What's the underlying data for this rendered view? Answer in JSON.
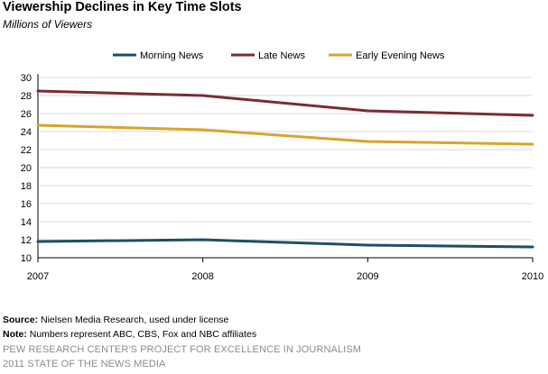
{
  "header": {
    "title": "Viewership Declines  in Key Time Slots",
    "subtitle": "Millions of Viewers"
  },
  "chart_data": {
    "type": "line",
    "x": [
      "2007",
      "2008",
      "2009",
      "2010"
    ],
    "series": [
      {
        "name": "Morning News",
        "values": [
          11.8,
          12.0,
          11.4,
          11.2
        ],
        "color": "#1f4e66"
      },
      {
        "name": "Late News",
        "values": [
          28.5,
          28.0,
          26.3,
          25.8
        ],
        "color": "#7b2b35"
      },
      {
        "name": "Early Evening News",
        "values": [
          24.7,
          24.2,
          22.9,
          22.6
        ],
        "color": "#d9a428"
      }
    ],
    "yticks": [
      "10",
      "12",
      "14",
      "16",
      "18",
      "20",
      "22",
      "24",
      "26",
      "28",
      "30"
    ],
    "ylim": [
      10,
      30
    ],
    "grid": true,
    "legend_position": "top"
  },
  "footer": {
    "source_label": "Source:",
    "source_text": " Nielsen Media Research, used under license",
    "note_label": "Note:",
    "note_text": " Numbers represent ABC, CBS, Fox and NBC affiliates",
    "credit_line1": "PEW RESEARCH CENTER'S PROJECT FOR EXCELLENCE IN JOURNALISM",
    "credit_line2": "2011 STATE OF THE NEWS MEDIA"
  }
}
